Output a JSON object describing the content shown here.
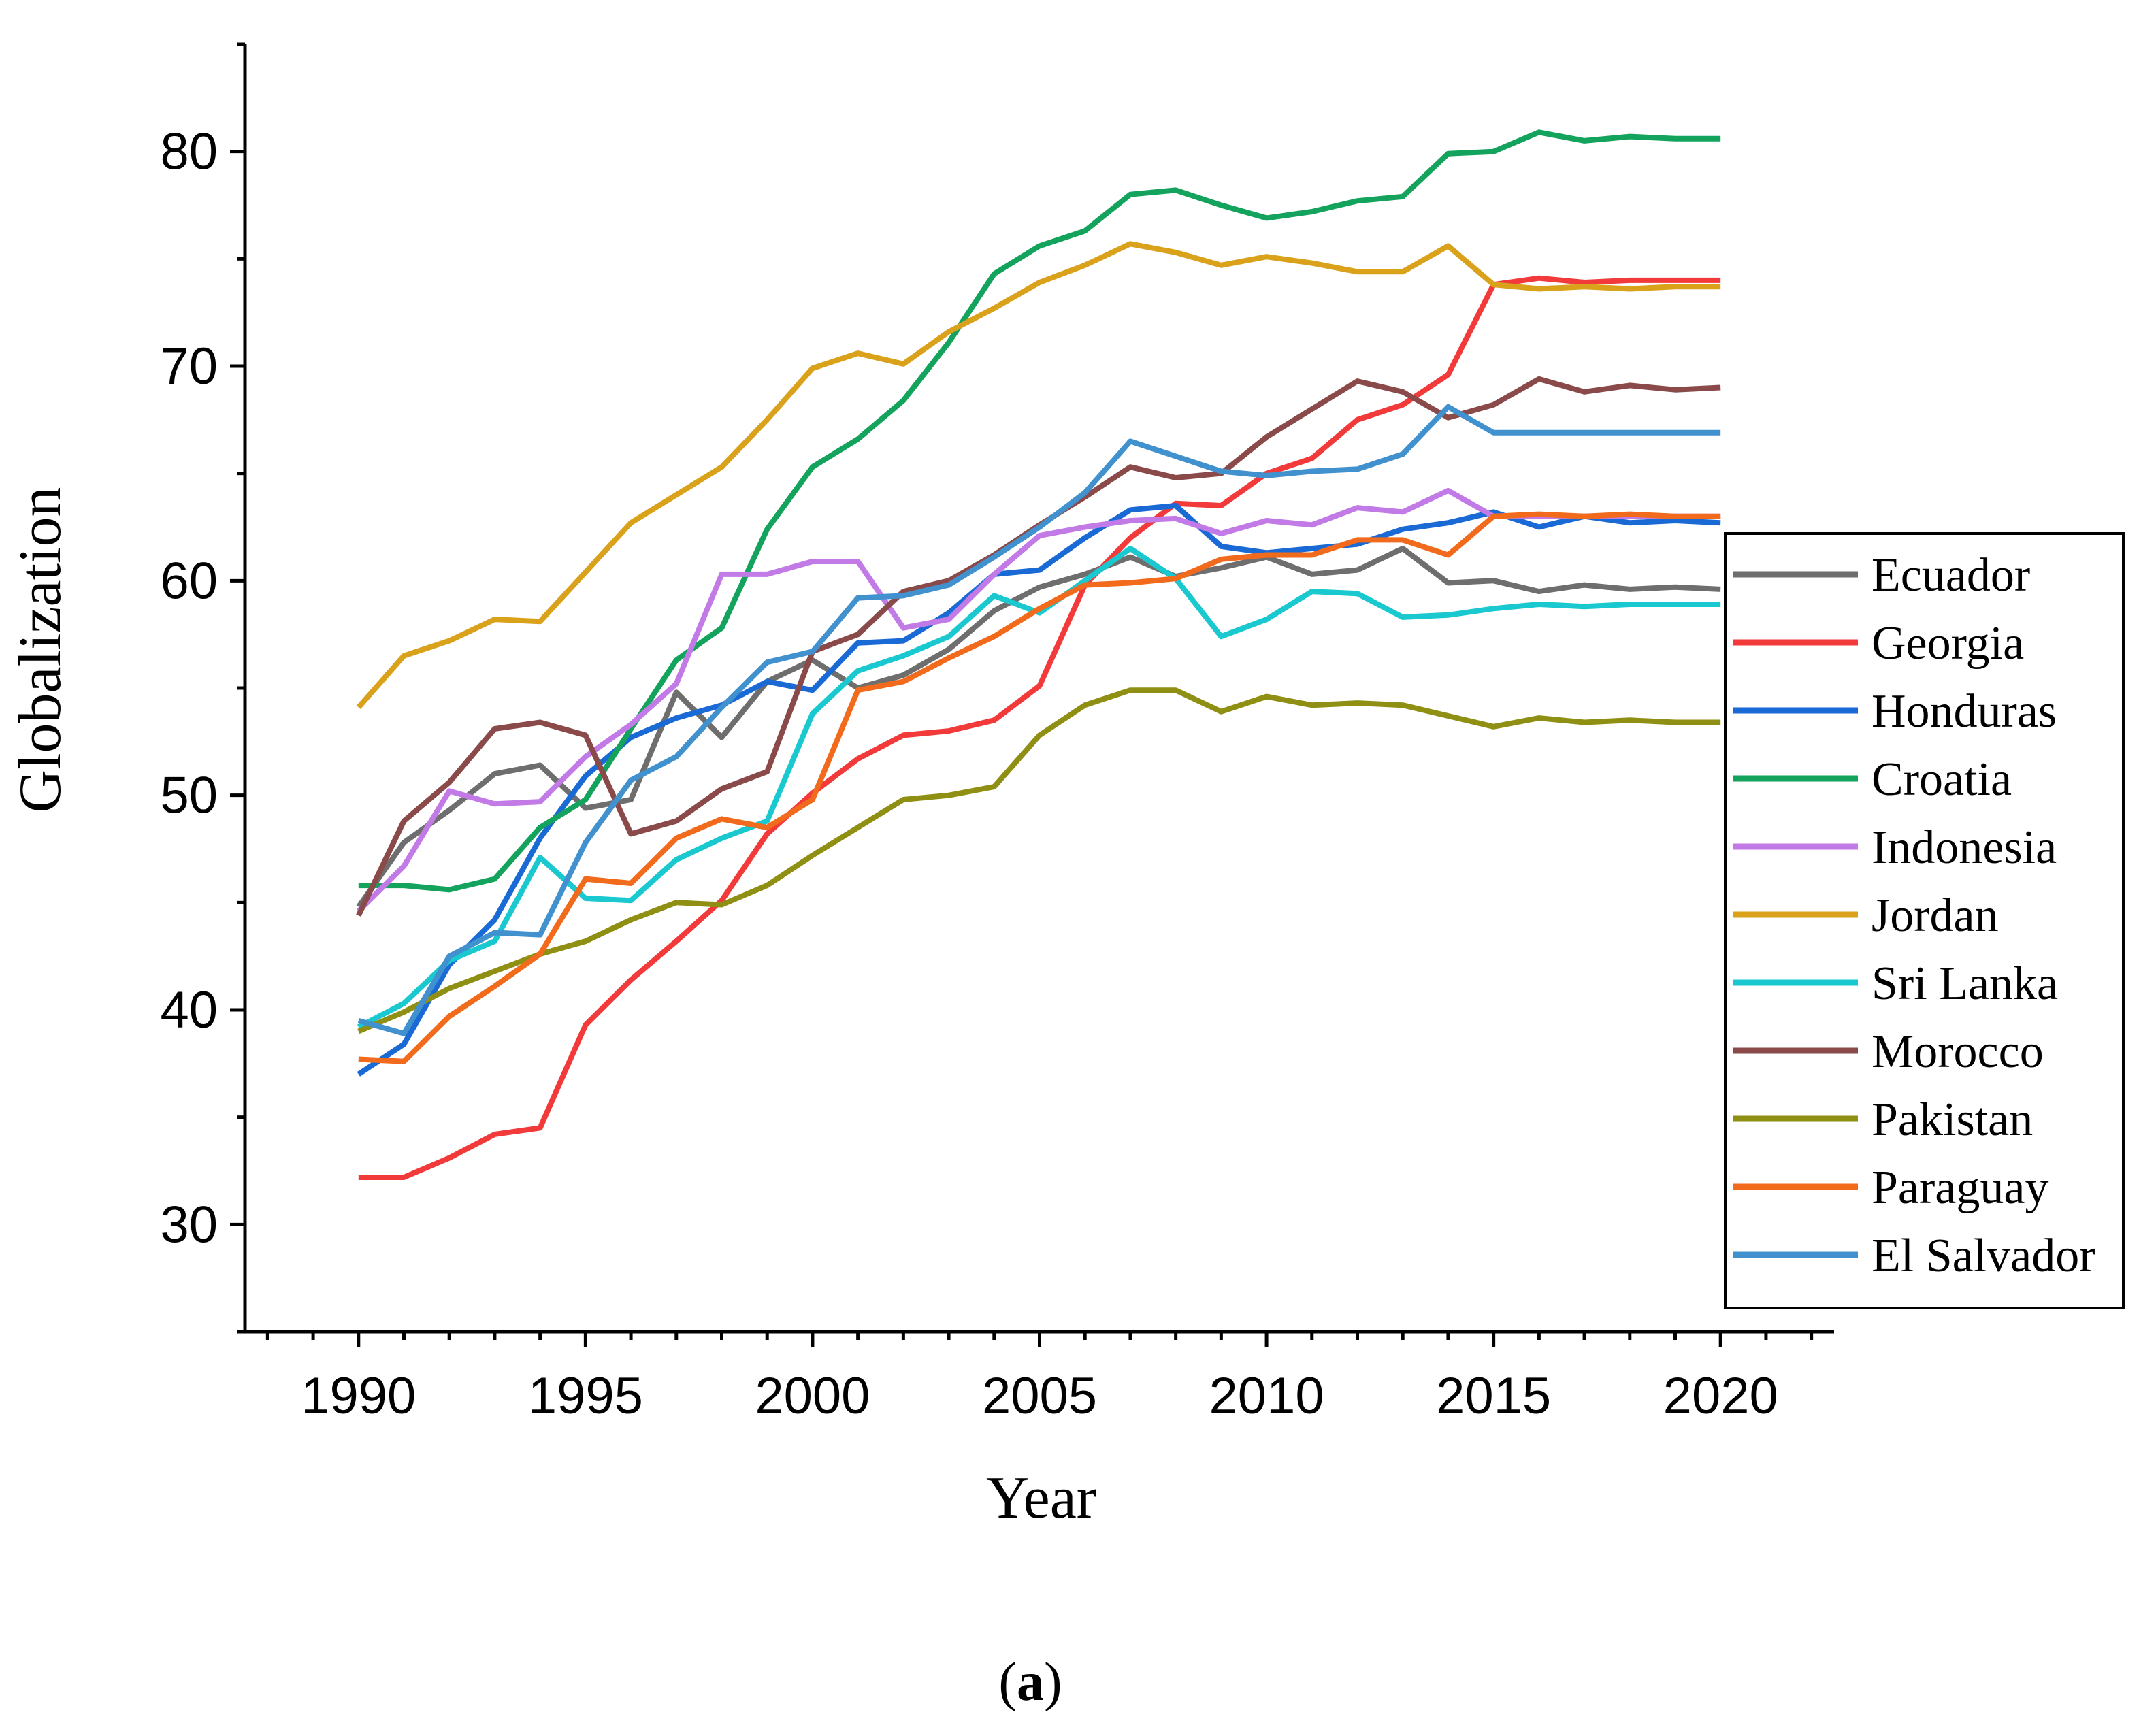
{
  "chart_data": {
    "type": "line",
    "xlabel": "Year",
    "ylabel": "Globalization",
    "xlim": [
      1987.5,
      2022.5
    ],
    "ylim": [
      25,
      85
    ],
    "xticks": [
      1990,
      1995,
      2000,
      2005,
      2010,
      2015,
      2020
    ],
    "yticks": [
      30,
      40,
      50,
      60,
      70,
      80
    ],
    "x": [
      1990,
      1991,
      1992,
      1993,
      1994,
      1995,
      1996,
      1997,
      1998,
      1999,
      2000,
      2001,
      2002,
      2003,
      2004,
      2005,
      2006,
      2007,
      2008,
      2009,
      2010,
      2011,
      2012,
      2013,
      2014,
      2015,
      2016,
      2017,
      2018,
      2019,
      2020
    ],
    "legend_position": "right",
    "series": [
      {
        "name": "Ecuador",
        "color": "#6e6e6e",
        "values": [
          44.8,
          47.8,
          49.3,
          51.0,
          51.4,
          49.4,
          49.8,
          54.8,
          52.7,
          55.3,
          56.3,
          55.0,
          55.6,
          56.8,
          58.6,
          59.7,
          60.3,
          61.1,
          60.2,
          60.6,
          61.1,
          60.3,
          60.5,
          61.5,
          59.9,
          60.0,
          59.5,
          59.8,
          59.6,
          59.7,
          59.6
        ]
      },
      {
        "name": "Georgia",
        "color": "#f23a3a",
        "values": [
          32.2,
          32.2,
          33.1,
          34.2,
          34.5,
          39.3,
          41.4,
          43.2,
          45.1,
          48.2,
          50.1,
          51.7,
          52.8,
          53.0,
          53.5,
          55.1,
          59.8,
          62.0,
          63.6,
          63.5,
          65.0,
          65.7,
          67.5,
          68.2,
          69.6,
          73.8,
          74.1,
          73.9,
          74.0,
          74.0,
          74.0
        ]
      },
      {
        "name": "Honduras",
        "color": "#1a6ad6",
        "values": [
          37.0,
          38.4,
          42.1,
          44.2,
          48.0,
          50.9,
          52.7,
          53.6,
          54.2,
          55.3,
          54.9,
          57.1,
          57.2,
          58.5,
          60.3,
          60.5,
          62.0,
          63.3,
          63.5,
          61.6,
          61.3,
          61.5,
          61.7,
          62.4,
          62.7,
          63.2,
          62.5,
          63.0,
          62.7,
          62.8,
          62.7
        ]
      },
      {
        "name": "Croatia",
        "color": "#14a35c",
        "values": [
          45.8,
          45.8,
          45.6,
          46.1,
          48.5,
          49.8,
          53.1,
          56.3,
          57.8,
          62.4,
          65.3,
          66.6,
          68.4,
          71.1,
          74.3,
          75.6,
          76.3,
          78.0,
          78.2,
          77.5,
          76.9,
          77.2,
          77.7,
          77.9,
          79.9,
          80.0,
          80.9,
          80.5,
          80.7,
          80.6,
          80.6
        ]
      },
      {
        "name": "Indonesia",
        "color": "#c27ae6",
        "values": [
          44.6,
          46.7,
          50.2,
          49.6,
          49.7,
          51.8,
          53.3,
          55.2,
          60.3,
          60.3,
          60.9,
          60.9,
          57.8,
          58.2,
          60.3,
          62.1,
          62.5,
          62.8,
          62.9,
          62.2,
          62.8,
          62.6,
          63.4,
          63.2,
          64.2,
          63.0,
          63.0,
          63.0,
          63.0,
          63.0,
          63.0
        ]
      },
      {
        "name": "Jordan",
        "color": "#d9a21a",
        "values": [
          54.1,
          56.5,
          57.2,
          58.2,
          58.1,
          60.4,
          62.7,
          64.0,
          65.3,
          67.5,
          69.9,
          70.6,
          70.1,
          71.6,
          72.7,
          73.9,
          74.7,
          75.7,
          75.3,
          74.7,
          75.1,
          74.8,
          74.4,
          74.4,
          75.6,
          73.8,
          73.6,
          73.7,
          73.6,
          73.7,
          73.7
        ]
      },
      {
        "name": "Sri Lanka",
        "color": "#19c9cf",
        "values": [
          39.2,
          40.3,
          42.3,
          43.2,
          47.1,
          45.2,
          45.1,
          47.0,
          48.0,
          48.8,
          53.8,
          55.8,
          56.5,
          57.4,
          59.3,
          58.5,
          60.0,
          61.5,
          60.1,
          57.4,
          58.2,
          59.5,
          59.4,
          58.3,
          58.4,
          58.7,
          58.9,
          58.8,
          58.9,
          58.9,
          58.9
        ]
      },
      {
        "name": "Morocco",
        "color": "#8b4a4a",
        "values": [
          44.4,
          48.8,
          50.6,
          53.1,
          53.4,
          52.8,
          48.2,
          48.8,
          50.3,
          51.1,
          56.7,
          57.5,
          59.5,
          60.0,
          61.2,
          62.6,
          63.9,
          65.3,
          64.8,
          65.0,
          66.7,
          68.0,
          69.3,
          68.8,
          67.6,
          68.2,
          69.4,
          68.8,
          69.1,
          68.9,
          69.0
        ]
      },
      {
        "name": "Pakistan",
        "color": "#8f8f14",
        "values": [
          39.0,
          39.9,
          41.0,
          41.8,
          42.6,
          43.2,
          44.2,
          45.0,
          44.9,
          45.8,
          47.2,
          48.5,
          49.8,
          50.0,
          50.4,
          52.8,
          54.2,
          54.9,
          54.9,
          53.9,
          54.6,
          54.2,
          54.3,
          54.2,
          53.7,
          53.2,
          53.6,
          53.4,
          53.5,
          53.4,
          53.4
        ]
      },
      {
        "name": "Paraguay",
        "color": "#f26a1b",
        "values": [
          37.7,
          37.6,
          39.7,
          41.1,
          42.6,
          46.1,
          45.9,
          48.0,
          48.9,
          48.5,
          49.8,
          54.9,
          55.3,
          56.4,
          57.4,
          58.7,
          59.8,
          59.9,
          60.1,
          61.0,
          61.2,
          61.2,
          61.9,
          61.9,
          61.2,
          63.0,
          63.1,
          63.0,
          63.1,
          63.0,
          63.0
        ]
      },
      {
        "name": "El Salvador",
        "color": "#4191cf",
        "values": [
          39.5,
          38.9,
          42.5,
          43.6,
          43.5,
          47.8,
          50.7,
          51.8,
          54.1,
          56.2,
          56.7,
          59.2,
          59.3,
          59.8,
          61.1,
          62.5,
          64.1,
          66.5,
          65.8,
          65.1,
          64.9,
          65.1,
          65.2,
          65.9,
          68.1,
          66.9,
          66.9,
          66.9,
          66.9,
          66.9,
          66.9
        ]
      }
    ]
  },
  "caption": {
    "open": "(",
    "label": "a",
    "close": ")"
  }
}
